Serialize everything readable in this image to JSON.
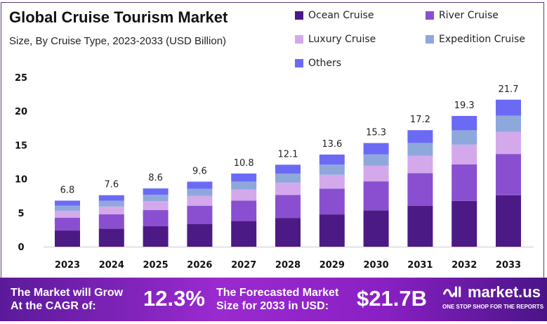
{
  "chart_data": {
    "type": "bar",
    "stacked": true,
    "title": "Global Cruise Tourism Market",
    "subtitle": "Size, By Cruise Type, 2023-2033  (USD Billion)",
    "xlabel": "",
    "ylabel": "",
    "ylim": [
      0,
      25
    ],
    "yticks": [
      "0",
      "5",
      "10",
      "15",
      "20",
      "25"
    ],
    "categories": [
      "2023",
      "2024",
      "2025",
      "2026",
      "2027",
      "2028",
      "2029",
      "2030",
      "2031",
      "2032",
      "2033"
    ],
    "totals": [
      "6.8",
      "7.6",
      "8.6",
      "9.6",
      "10.8",
      "12.1",
      "13.6",
      "15.3",
      "17.2",
      "19.3",
      "21.7"
    ],
    "series": [
      {
        "name": "Ocean Cruise",
        "color": "#4b1a84",
        "values": [
          2.38,
          2.66,
          3.01,
          3.36,
          3.78,
          4.24,
          4.76,
          5.36,
          6.02,
          6.76,
          7.6
        ]
      },
      {
        "name": "River Cruise",
        "color": "#8a4fd0",
        "values": [
          1.9,
          2.13,
          2.41,
          2.69,
          3.02,
          3.39,
          3.81,
          4.28,
          4.82,
          5.4,
          6.08
        ]
      },
      {
        "name": "Luxury Cruise",
        "color": "#d4a9ec",
        "values": [
          1.02,
          1.14,
          1.29,
          1.44,
          1.62,
          1.82,
          2.04,
          2.3,
          2.58,
          2.9,
          3.26
        ]
      },
      {
        "name": "Expedition Cruise",
        "color": "#8fa8dc",
        "values": [
          0.75,
          0.84,
          0.95,
          1.06,
          1.19,
          1.33,
          1.5,
          1.68,
          1.89,
          2.12,
          2.39
        ]
      },
      {
        "name": "Others",
        "color": "#6b6af5",
        "values": [
          0.75,
          0.83,
          0.94,
          1.05,
          1.19,
          1.32,
          1.49,
          1.68,
          1.89,
          2.12,
          2.37
        ]
      }
    ],
    "legend_position": "top-right",
    "grid": false
  },
  "footer": {
    "cagr_label_1": "The Market will Grow",
    "cagr_label_2": "At the CAGR of:",
    "cagr_value": "12.3%",
    "forecast_label_1": "The Forecasted Market",
    "forecast_label_2": "Size for 2033 in USD:",
    "forecast_value": "$21.7B",
    "logo_name": "market.us",
    "logo_tagline": "ONE STOP SHOP FOR THE REPORTS"
  }
}
